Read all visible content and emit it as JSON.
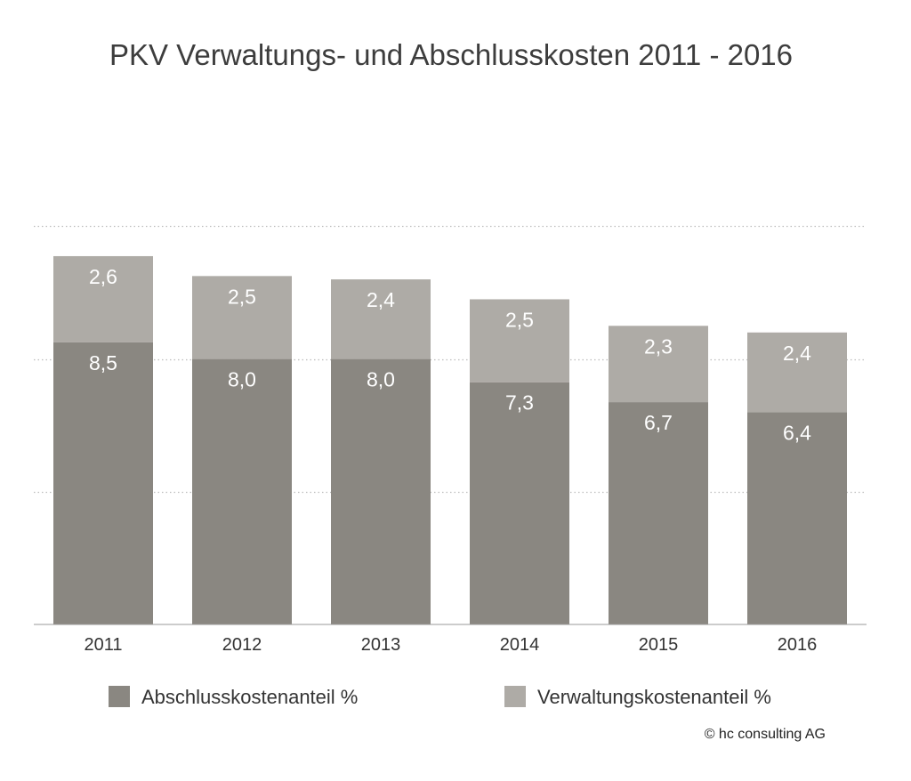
{
  "chart_data": {
    "type": "bar",
    "stacked": true,
    "title": "PKV Verwaltungs- und Abschlusskosten 2011 - 2016",
    "categories": [
      "2011",
      "2012",
      "2013",
      "2014",
      "2015",
      "2016"
    ],
    "series": [
      {
        "name": "Abschlusskostenanteil %",
        "values": [
          8.5,
          8.0,
          8.0,
          7.3,
          6.7,
          6.4
        ],
        "labels": [
          "8,5",
          "8,0",
          "8,0",
          "7,3",
          "6,7",
          "6,4"
        ],
        "color": "#8a8781"
      },
      {
        "name": "Verwaltungskostenanteil %",
        "values": [
          2.6,
          2.5,
          2.4,
          2.5,
          2.3,
          2.4
        ],
        "labels": [
          "2,6",
          "2,5",
          "2,4",
          "2,5",
          "2,3",
          "2,4"
        ],
        "color": "#aeaba6"
      }
    ],
    "ylim": [
      0,
      12
    ],
    "grid": true,
    "grid_style": "dotted",
    "legend_position": "bottom",
    "source": "© hc consulting AG"
  }
}
